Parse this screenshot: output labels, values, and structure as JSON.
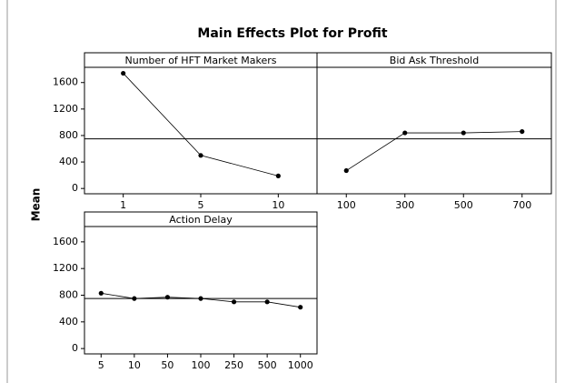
{
  "title": "Main Effects Plot for Profit",
  "y_label": "Mean",
  "chart_data": [
    {
      "type": "line",
      "title": "Number of HFT Market Makers",
      "categories": [
        "1",
        "5",
        "10"
      ],
      "values": [
        1740,
        500,
        190
      ],
      "reference_line": 750,
      "ylim": [
        -80,
        1830
      ],
      "yticks": [
        0,
        400,
        800,
        1200,
        1600
      ],
      "color": "#000000"
    },
    {
      "type": "line",
      "title": "Bid Ask Threshold",
      "categories": [
        "100",
        "300",
        "500",
        "700"
      ],
      "values": [
        270,
        840,
        840,
        860
      ],
      "reference_line": 750,
      "ylim": [
        -80,
        1830
      ],
      "color": "#000000"
    },
    {
      "type": "line",
      "title": "Action Delay",
      "categories": [
        "5",
        "10",
        "50",
        "100",
        "250",
        "500",
        "1000"
      ],
      "values": [
        830,
        750,
        770,
        750,
        700,
        700,
        620
      ],
      "reference_line": 750,
      "ylim": [
        -80,
        1830
      ],
      "yticks": [
        0,
        400,
        800,
        1200,
        1600
      ],
      "color": "#000000"
    }
  ]
}
